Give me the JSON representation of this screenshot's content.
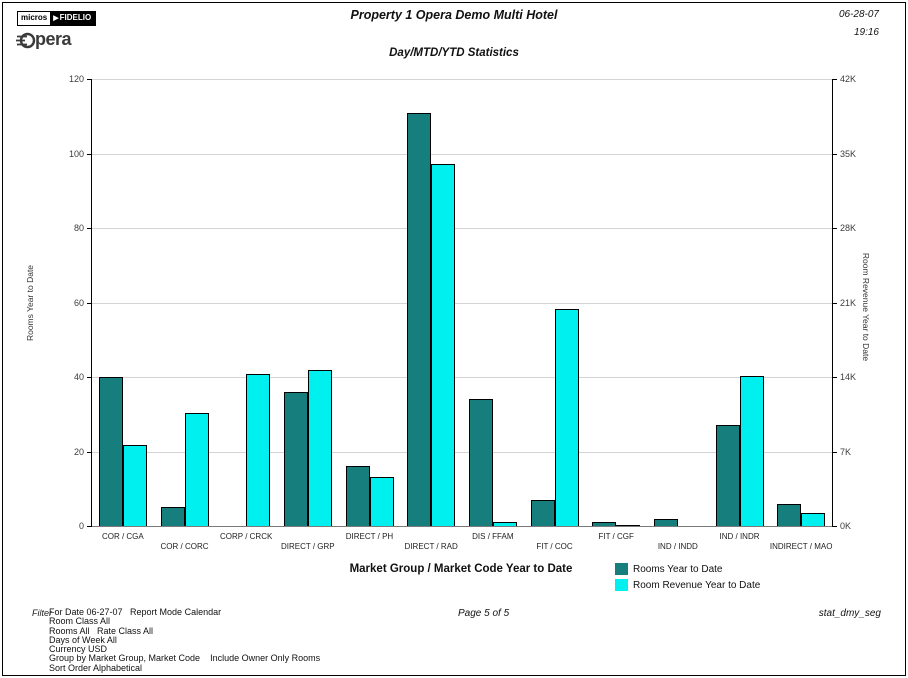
{
  "header": {
    "logo": {
      "micros": "micros",
      "fidelio": "FIDELIO",
      "opera_o": "O",
      "opera_rest": "pera"
    },
    "title": "Property 1 Opera Demo Multi Hotel",
    "subtitle": "Day/MTD/YTD Statistics",
    "date": "06-28-07",
    "time": "19:16"
  },
  "chart_data": {
    "type": "bar",
    "title": "Day/MTD/YTD Statistics",
    "xlabel": "Market Group / Market Code Year to Date",
    "ylabel_left": "Rooms Year to Date",
    "ylabel_right": "Room Revenue Year to Date",
    "ylim_left": [
      0,
      120
    ],
    "ylim_right": [
      0,
      42000
    ],
    "yticks_left": [
      0,
      20,
      40,
      60,
      80,
      100,
      120
    ],
    "yticks_right_labels": [
      "0K",
      "7K",
      "14K",
      "21K",
      "28K",
      "35K",
      "42K"
    ],
    "grid": true,
    "legend_position": "bottom-right",
    "categories": [
      "COR / CGA",
      "COR / CORC",
      "CORP / CRCK",
      "DIRECT / GRP",
      "DIRECT / PH",
      "DIRECT / RAD",
      "DIS / FFAM",
      "FIT / COC",
      "FIT / CGF",
      "IND / INDD",
      "IND / INDR",
      "INDIRECT / MAO"
    ],
    "series": [
      {
        "name": "Rooms Year to Date",
        "axis": "left",
        "color": "#177E7E",
        "values": [
          40,
          5,
          0,
          36,
          16,
          111,
          34,
          7,
          1,
          2,
          27,
          6
        ]
      },
      {
        "name": "Room Revenue Year to Date",
        "axis": "right",
        "color": "#00F0F0",
        "values_k": [
          7.6,
          10.6,
          14.3,
          14.7,
          4.6,
          34.0,
          0.4,
          20.4,
          0.1,
          0,
          14.1,
          1.2
        ]
      }
    ]
  },
  "footer": {
    "filter_label": "Filter",
    "filter_lines": [
      "For Date 06-27-07   Report Mode Calendar",
      "Room Class All",
      "Rooms All   Rate Class All",
      "Days of Week All",
      "Currency USD",
      "Group by Market Group, Market Code    Include Owner Only Rooms",
      "Sort Order Alphabetical"
    ],
    "page_indicator": "Page 5 of 5",
    "report_code": "stat_dmy_seg"
  }
}
